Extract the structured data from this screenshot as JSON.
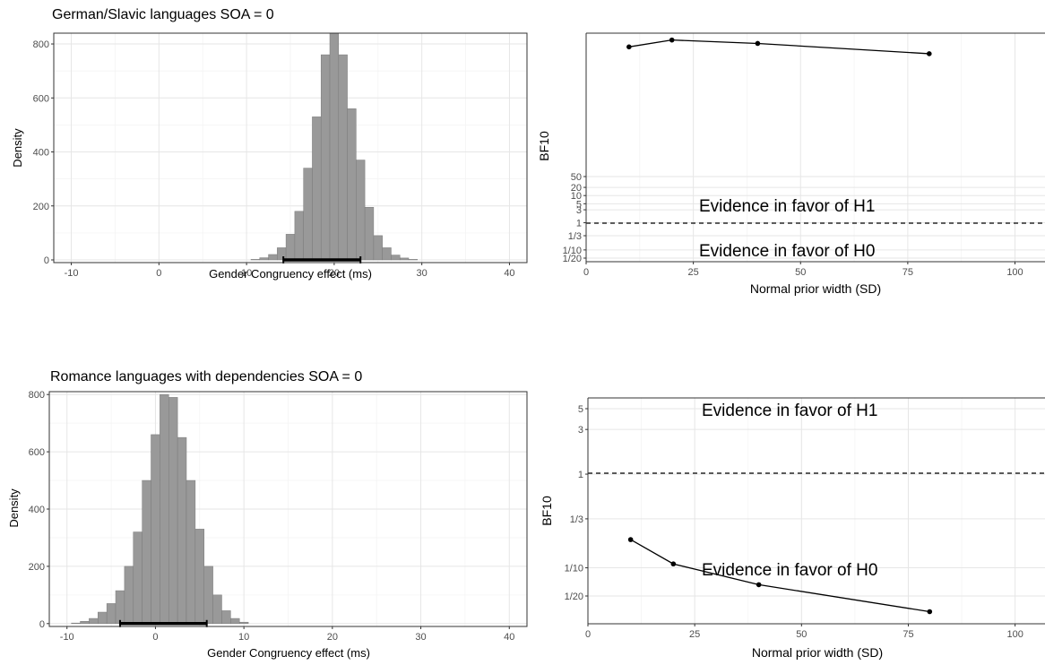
{
  "chart_data": [
    {
      "type": "bar",
      "title": "German/Slavic languages SOA = 0",
      "xlabel": "Gender Congruency effect (ms)",
      "ylabel": "Density",
      "xlim": [
        -12,
        42
      ],
      "ylim": [
        -10,
        840
      ],
      "x_ticks": [
        -10,
        0,
        10,
        20,
        30,
        40
      ],
      "y_ticks": [
        0,
        200,
        400,
        600,
        800
      ],
      "bin_width": 1,
      "bins": [
        [
          11,
          2
        ],
        [
          12,
          8
        ],
        [
          13,
          20
        ],
        [
          14,
          45
        ],
        [
          15,
          95
        ],
        [
          16,
          180
        ],
        [
          17,
          340
        ],
        [
          18,
          530
        ],
        [
          19,
          760
        ],
        [
          20,
          840
        ],
        [
          21,
          760
        ],
        [
          22,
          560
        ],
        [
          23,
          370
        ],
        [
          24,
          195
        ],
        [
          25,
          90
        ],
        [
          26,
          45
        ],
        [
          27,
          18
        ],
        [
          28,
          7
        ],
        [
          29,
          2
        ]
      ],
      "interval": [
        14.2,
        23.0
      ],
      "fill_color": "#999999",
      "grid": true
    },
    {
      "type": "line",
      "xlabel": "Normal prior width (SD)",
      "ylabel": "BF10",
      "xlim": [
        0,
        107
      ],
      "x_ticks": [
        0,
        25,
        50,
        75,
        100
      ],
      "y_scale": "log",
      "y_ticks": [
        "50",
        "20",
        "10",
        "5",
        "3",
        "1",
        "1/3",
        "1/10",
        "1/20"
      ],
      "reference_line": "1",
      "annotations": [
        "Evidence in favor of H1",
        "Evidence in favor of H0"
      ],
      "points_note": "values far above 50 (top of panel)",
      "x": [
        10,
        20,
        40,
        80
      ],
      "y_relative": [
        0.94,
        0.97,
        0.955,
        0.91
      ],
      "grid": true
    },
    {
      "type": "bar",
      "title": "Romance languages with dependencies SOA = 0",
      "xlabel": "Gender Congruency effect (ms)",
      "ylabel": "Density",
      "xlim": [
        -12,
        42
      ],
      "ylim": [
        -10,
        810
      ],
      "x_ticks": [
        -10,
        0,
        10,
        20,
        30,
        40
      ],
      "y_ticks": [
        0,
        200,
        400,
        600,
        800
      ],
      "bin_width": 1,
      "bins": [
        [
          -9,
          2
        ],
        [
          -8,
          8
        ],
        [
          -7,
          18
        ],
        [
          -6,
          40
        ],
        [
          -5,
          70
        ],
        [
          -4,
          115
        ],
        [
          -3,
          200
        ],
        [
          -2,
          320
        ],
        [
          -1,
          500
        ],
        [
          0,
          660
        ],
        [
          1,
          800
        ],
        [
          2,
          790
        ],
        [
          3,
          650
        ],
        [
          4,
          500
        ],
        [
          5,
          330
        ],
        [
          6,
          200
        ],
        [
          7,
          100
        ],
        [
          8,
          45
        ],
        [
          9,
          18
        ],
        [
          10,
          5
        ]
      ],
      "interval": [
        -4.0,
        5.8
      ],
      "fill_color": "#999999",
      "grid": true
    },
    {
      "type": "line",
      "xlabel": "Normal prior width (SD)",
      "ylabel": "BF10",
      "xlim": [
        0,
        107
      ],
      "x_ticks": [
        0,
        25,
        50,
        75,
        100
      ],
      "y_scale": "log",
      "y_ticks": [
        "5",
        "3",
        "1",
        "1/3",
        "1/10",
        "1/20"
      ],
      "reference_line": "1",
      "annotations": [
        "Evidence in favor of H1",
        "Evidence in favor of H0"
      ],
      "x": [
        10,
        20,
        40,
        80
      ],
      "y": [
        0.2,
        0.11,
        0.066,
        0.034
      ],
      "grid": true
    }
  ]
}
